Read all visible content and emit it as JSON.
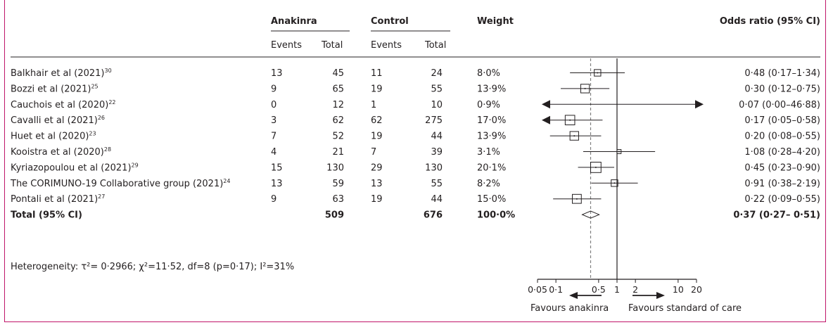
{
  "header": {
    "group1": "Anakinra",
    "group2": "Control",
    "weight": "Weight",
    "effect": "Odds ratio (95% CI)",
    "events": "Events",
    "total": "Total"
  },
  "studies": [
    {
      "name": "Balkhair et al (2021)",
      "ref": "30",
      "ak_events": "13",
      "ak_total": "45",
      "ct_events": "11",
      "ct_total": "24",
      "weight_label": "8·0%",
      "ci_label": "0·48 (0·17–1·34)"
    },
    {
      "name": "Bozzi et al (2021)",
      "ref": "25",
      "ak_events": "9",
      "ak_total": "65",
      "ct_events": "19",
      "ct_total": "55",
      "weight_label": "13·9%",
      "ci_label": "0·30 (0·12–0·75)"
    },
    {
      "name": "Cauchois et al (2020)",
      "ref": "22",
      "ak_events": "0",
      "ak_total": "12",
      "ct_events": "1",
      "ct_total": "10",
      "weight_label": "0·9%",
      "ci_label": "0·07 (0·00–46·88)"
    },
    {
      "name": "Cavalli et al (2021)",
      "ref": "26",
      "ak_events": "3",
      "ak_total": "62",
      "ct_events": "62",
      "ct_total": "275",
      "weight_label": "17·0%",
      "ci_label": "0·17 (0·05–0·58)"
    },
    {
      "name": "Huet et al (2020)",
      "ref": "23",
      "ak_events": "7",
      "ak_total": "52",
      "ct_events": "19",
      "ct_total": "44",
      "weight_label": "13·9%",
      "ci_label": "0·20 (0·08–0·55)"
    },
    {
      "name": "Kooistra et al (2020)",
      "ref": "28",
      "ak_events": "4",
      "ak_total": "21",
      "ct_events": "7",
      "ct_total": "39",
      "weight_label": "3·1%",
      "ci_label": "1·08 (0·28–4·20)"
    },
    {
      "name": "Kyriazopoulou et al (2021)",
      "ref": "29",
      "ak_events": "15",
      "ak_total": "130",
      "ct_events": "29",
      "ct_total": "130",
      "weight_label": "20·1%",
      "ci_label": "0·45 (0·23–0·90)"
    },
    {
      "name": "The CORIMUNO-19 Collaborative group (2021)",
      "ref": "24",
      "ak_events": "13",
      "ak_total": "59",
      "ct_events": "13",
      "ct_total": "55",
      "weight_label": "8·2%",
      "ci_label": "0·91 (0·38–2·19)"
    },
    {
      "name": "Pontali et al (2021)",
      "ref": "27",
      "ak_events": "9",
      "ak_total": "63",
      "ct_events": "19",
      "ct_total": "44",
      "weight_label": "15·0%",
      "ci_label": "0·22 (0·09–0·55)"
    }
  ],
  "total": {
    "name": "Total (95% CI)",
    "ak_total": "509",
    "ct_total": "676",
    "weight_label": "100·0%",
    "ci_label": "0·37 (0·27– 0·51)"
  },
  "heterogeneity": "Heterogeneity: τ²= 0·2966; χ²=11·52, df=8 (p=0·17); I²=31%",
  "favours_left": "Favours anakinra",
  "favours_right": "Favours standard of care",
  "colors": {
    "frame": "#c0166a",
    "ink": "#231f20",
    "dashed": "#808080"
  },
  "chart_data": {
    "type": "forest",
    "scale": "log",
    "xlim": [
      0.05,
      20
    ],
    "xticks": [
      {
        "v": 0.05,
        "label": "0·05"
      },
      {
        "v": 0.1,
        "label": "0·1"
      },
      {
        "v": 0.5,
        "label": "0·5"
      },
      {
        "v": 1,
        "label": "1"
      },
      {
        "v": 2,
        "label": "2"
      },
      {
        "v": 10,
        "label": "10"
      },
      {
        "v": 20,
        "label": "20"
      }
    ],
    "null_value": 1,
    "pooled_reference": 0.37,
    "studies": [
      {
        "or": 0.48,
        "lo": 0.17,
        "hi": 1.34,
        "weight": 8.0
      },
      {
        "or": 0.3,
        "lo": 0.12,
        "hi": 0.75,
        "weight": 13.9
      },
      {
        "or": 0.07,
        "lo": 0.0,
        "hi": 46.88,
        "weight": 0.9
      },
      {
        "or": 0.17,
        "lo": 0.05,
        "hi": 0.58,
        "weight": 17.0
      },
      {
        "or": 0.2,
        "lo": 0.08,
        "hi": 0.55,
        "weight": 13.9
      },
      {
        "or": 1.08,
        "lo": 0.28,
        "hi": 4.2,
        "weight": 3.1
      },
      {
        "or": 0.45,
        "lo": 0.23,
        "hi": 0.9,
        "weight": 20.1
      },
      {
        "or": 0.91,
        "lo": 0.38,
        "hi": 2.19,
        "weight": 8.2
      },
      {
        "or": 0.22,
        "lo": 0.09,
        "hi": 0.55,
        "weight": 15.0
      }
    ],
    "pooled": {
      "or": 0.37,
      "lo": 0.27,
      "hi": 0.51
    }
  }
}
